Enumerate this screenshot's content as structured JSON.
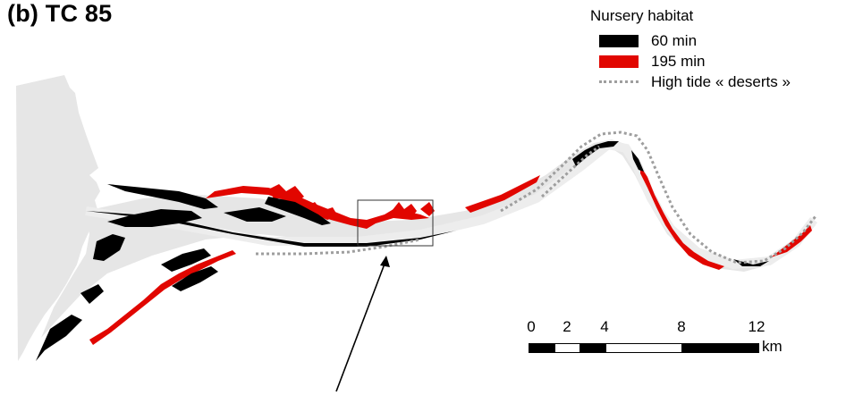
{
  "panel": {
    "title": "(b) TC 85"
  },
  "legend": {
    "title": "Nursery habitat",
    "items": [
      {
        "label": "60 min",
        "color": "#000000",
        "style": "solid"
      },
      {
        "label": "195 min",
        "color": "#e10600",
        "style": "solid"
      },
      {
        "label": "High tide « deserts »",
        "color": "#9e9e9e",
        "style": "dotted"
      }
    ]
  },
  "scalebar": {
    "ticks": [
      "0",
      "2",
      "4",
      "8",
      "12"
    ],
    "unit": "km"
  },
  "colors": {
    "land_gray": "#e6e6e6",
    "channel_gray": "#e0e0e0",
    "nursery_60": "#000000",
    "nursery_195": "#e10600",
    "desert_line": "#9e9e9e"
  }
}
